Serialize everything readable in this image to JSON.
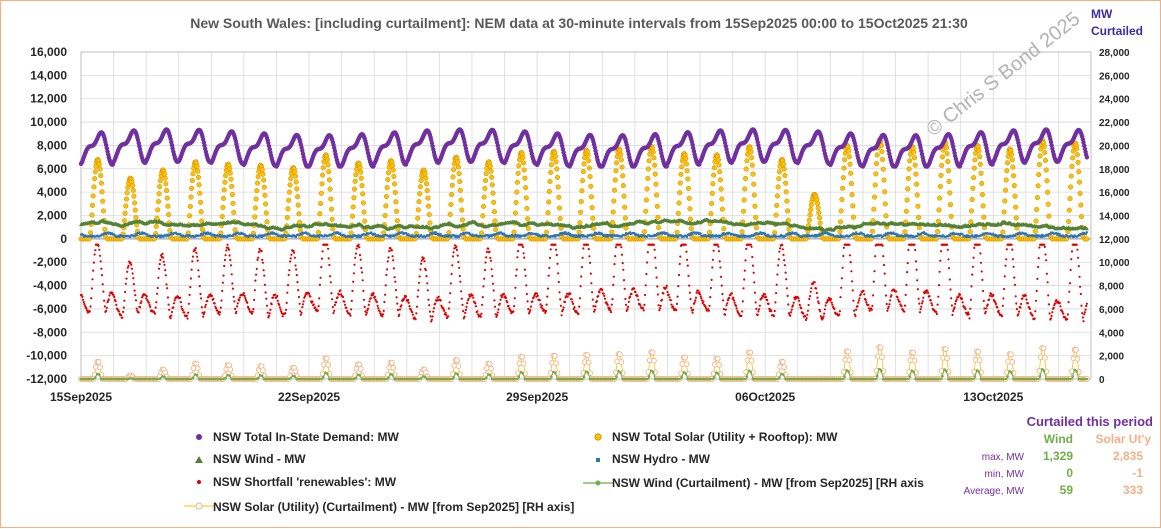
{
  "chart_data": {
    "type": "scatter",
    "title": "New South Wales:  [including curtailment]:  NEM data at 30-minute intervals from 15Sep2025 00:00 to 15Oct2025 21:30",
    "right_axis_label_line1": "MW",
    "right_axis_label_line2": "Curtailed",
    "watermark": "© Chris S Bond  2025",
    "x_range_days": [
      15,
      46
    ],
    "x_ticks": [
      {
        "day": 15,
        "label": "15Sep2025"
      },
      {
        "day": 22,
        "label": "22Sep2025"
      },
      {
        "day": 29,
        "label": "29Sep2025"
      },
      {
        "day": 36,
        "label": "06Oct2025"
      },
      {
        "day": 43,
        "label": "13Oct2025"
      }
    ],
    "ylim_left": [
      -12000,
      16000
    ],
    "y_ticks_left": [
      "16,000",
      "14,000",
      "12,000",
      "10,000",
      "8,000",
      "6,000",
      "4,000",
      "2,000",
      "0",
      "-2,000",
      "-4,000",
      "-6,000",
      "-8,000",
      "-10,000",
      "-12,000"
    ],
    "ylim_right": [
      0,
      28000
    ],
    "y_ticks_right": [
      "28,000",
      "26,000",
      "24,000",
      "22,000",
      "20,000",
      "18,000",
      "16,000",
      "14,000",
      "12,000",
      "10,000",
      "8,000",
      "6,000",
      "4,000",
      "2,000",
      "0"
    ],
    "grid": true,
    "series": [
      {
        "key": "demand",
        "name": "NSW Total In-State Demand: MW",
        "color": "#7030a0",
        "marker": "circle",
        "axis": "left",
        "min": 6200,
        "max": 10000
      },
      {
        "key": "solar",
        "name": "NSW Total Solar (Utility + Rooftop): MW",
        "color": "#ffc000",
        "marker": "circle-outline",
        "axis": "left",
        "min": 0,
        "max": 8500
      },
      {
        "key": "wind",
        "name": "NSW Wind -  MW",
        "color": "#548235",
        "marker": "triangle",
        "axis": "left",
        "min": 0,
        "max": 2300
      },
      {
        "key": "hydro",
        "name": "NSW Hydro -  MW",
        "color": "#2e75b6",
        "marker": "dot",
        "axis": "left",
        "min": 0,
        "max": 1200
      },
      {
        "key": "shortfall",
        "name": "NSW Shortfall 'renewables': MW",
        "color": "#e00000",
        "marker": "dot",
        "axis": "left",
        "min": -8500,
        "max": -500
      },
      {
        "key": "wind_curt",
        "name": "NSW Wind (Curtailment) - MW [from Sep2025] [RH axis",
        "color": "#70ad47",
        "marker": "line-dot",
        "axis": "right",
        "min": 0,
        "max": 1329
      },
      {
        "key": "solar_curt",
        "name": "NSW Solar (Utility) (Curtailment) - MW [from Sep2025] [RH axis]",
        "color": "#f4b183",
        "marker": "line-circle",
        "axis": "right",
        "min": -1,
        "max": 2835
      }
    ],
    "daily_solar_peaks": [
      6800,
      5200,
      5900,
      6600,
      6400,
      6300,
      6100,
      7200,
      6500,
      6700,
      5900,
      7000,
      6600,
      7400,
      7500,
      7600,
      7700,
      7900,
      7300,
      7200,
      7900,
      6800,
      3800,
      8000,
      8500,
      7900,
      8300,
      8000,
      7700,
      8400,
      8200
    ]
  },
  "stats": {
    "title": "Curtailed this period",
    "col_wind": "Wind",
    "col_solar": "Solar Ut'y",
    "rows": [
      {
        "label": "max, MW",
        "wind": "1,329",
        "solar": "2,835"
      },
      {
        "label": "min, MW",
        "wind": "0",
        "solar": "-1"
      },
      {
        "label": "Average, MW",
        "wind": "59",
        "solar": "333"
      }
    ],
    "wind_color": "#70ad47",
    "solar_color": "#f4b183"
  }
}
